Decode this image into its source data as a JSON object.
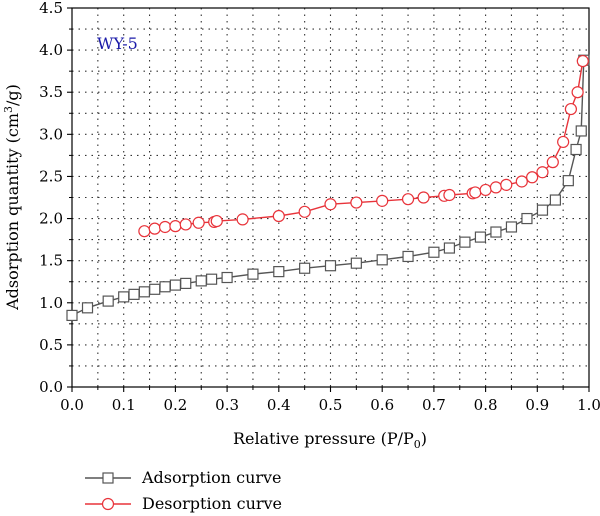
{
  "chart_data": {
    "type": "line",
    "sample_label": "WY-5",
    "xlabel": "Relative pressure (P/P",
    "xlabel_sub": "0",
    "xlabel_tail": ")",
    "ylabel": "Adsorption quantity (cm",
    "ylabel_sup": "3",
    "ylabel_tail": "/g)",
    "xlim": [
      0.0,
      1.0
    ],
    "ylim": [
      0.0,
      4.5
    ],
    "x_ticks": [
      "0.0",
      "0.1",
      "0.2",
      "0.3",
      "0.4",
      "0.5",
      "0.6",
      "0.7",
      "0.8",
      "0.9",
      "1.0"
    ],
    "y_ticks": [
      "0.0",
      "0.5",
      "1.0",
      "1.5",
      "2.0",
      "2.5",
      "3.0",
      "3.5",
      "4.0",
      "4.5"
    ],
    "grid": true,
    "legend_position": "bottom",
    "series": [
      {
        "name": "Adsorption curve",
        "color": "#555555",
        "marker": "square",
        "x": [
          0.0,
          0.03,
          0.07,
          0.1,
          0.12,
          0.14,
          0.16,
          0.18,
          0.2,
          0.22,
          0.25,
          0.27,
          0.3,
          0.35,
          0.4,
          0.45,
          0.5,
          0.55,
          0.6,
          0.65,
          0.7,
          0.73,
          0.76,
          0.79,
          0.82,
          0.85,
          0.88,
          0.91,
          0.935,
          0.96,
          0.975,
          0.985,
          0.99
        ],
        "y": [
          0.85,
          0.94,
          1.02,
          1.07,
          1.1,
          1.13,
          1.16,
          1.19,
          1.21,
          1.23,
          1.26,
          1.28,
          1.3,
          1.34,
          1.37,
          1.41,
          1.44,
          1.47,
          1.51,
          1.55,
          1.6,
          1.65,
          1.72,
          1.78,
          1.84,
          1.9,
          2.0,
          2.1,
          2.22,
          2.45,
          2.82,
          3.04,
          3.88
        ]
      },
      {
        "name": "Desorption curve",
        "color": "#e8333a",
        "marker": "circle",
        "x": [
          0.14,
          0.16,
          0.18,
          0.2,
          0.22,
          0.245,
          0.275,
          0.28,
          0.33,
          0.4,
          0.45,
          0.5,
          0.55,
          0.6,
          0.65,
          0.68,
          0.72,
          0.73,
          0.775,
          0.78,
          0.8,
          0.82,
          0.84,
          0.87,
          0.89,
          0.91,
          0.93,
          0.95,
          0.965,
          0.978,
          0.988
        ],
        "y": [
          1.85,
          1.88,
          1.9,
          1.91,
          1.93,
          1.95,
          1.96,
          1.97,
          1.99,
          2.03,
          2.08,
          2.17,
          2.19,
          2.21,
          2.23,
          2.25,
          2.27,
          2.28,
          2.3,
          2.31,
          2.34,
          2.37,
          2.4,
          2.44,
          2.49,
          2.55,
          2.67,
          2.91,
          3.3,
          3.5,
          3.87
        ]
      }
    ]
  }
}
